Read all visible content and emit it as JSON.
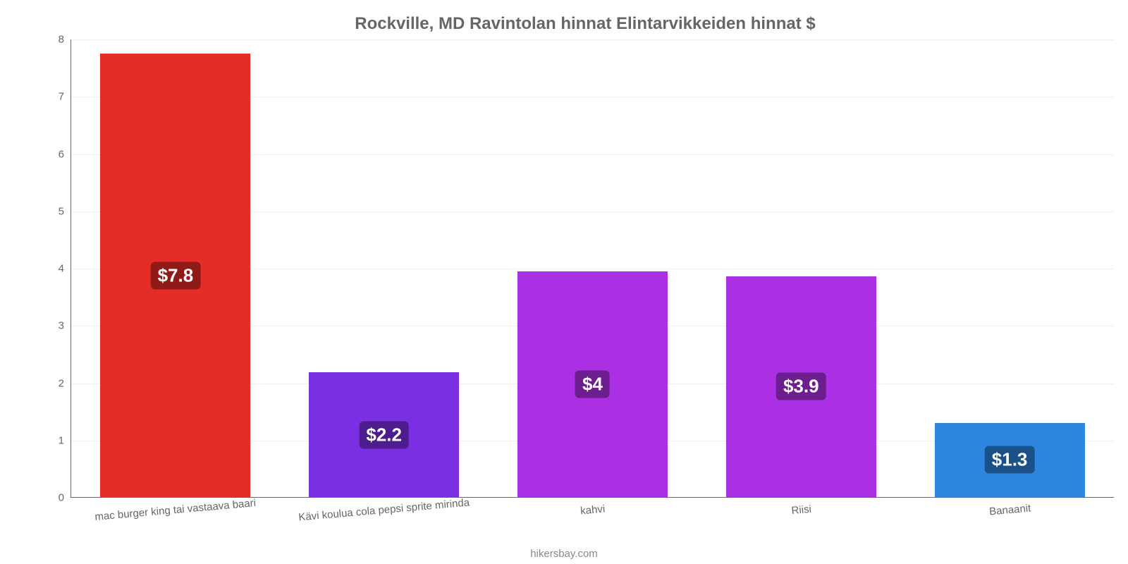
{
  "chart": {
    "type": "bar",
    "title": "Rockville, MD Ravintolan hinnat Elintarvikkeiden hinnat $",
    "title_fontsize": 24,
    "title_color": "#666666",
    "background_color": "#ffffff",
    "grid_color": "#f0f0f0",
    "axis_color": "#666666",
    "label_fontsize": 15,
    "label_color": "#666666",
    "ylim": [
      0,
      8
    ],
    "ytick_step": 1,
    "yticks": [
      "0",
      "1",
      "2",
      "3",
      "4",
      "5",
      "6",
      "7",
      "8"
    ],
    "bar_width": 0.72,
    "categories": [
      "mac burger king tai vastaava baari",
      "Kävi koulua cola pepsi sprite mirinda",
      "kahvi",
      "Riisi",
      "Banaanit"
    ],
    "values": [
      7.75,
      2.18,
      3.95,
      3.86,
      1.3
    ],
    "value_labels": [
      "$7.8",
      "$2.2",
      "$4",
      "$3.9",
      "$1.3"
    ],
    "bar_colors": [
      "#e52d27",
      "#7b2fe3",
      "#ab2fe3",
      "#ab2fe3",
      "#2e86de"
    ],
    "label_bg_colors": [
      "#8f1a16",
      "#4d1c8e",
      "#6c1d8e",
      "#6c1d8e",
      "#1b5189"
    ],
    "value_label_fontsize": 26,
    "value_label_color": "#ffffff",
    "credit": "hikersbay.com",
    "credit_color": "#888888"
  }
}
